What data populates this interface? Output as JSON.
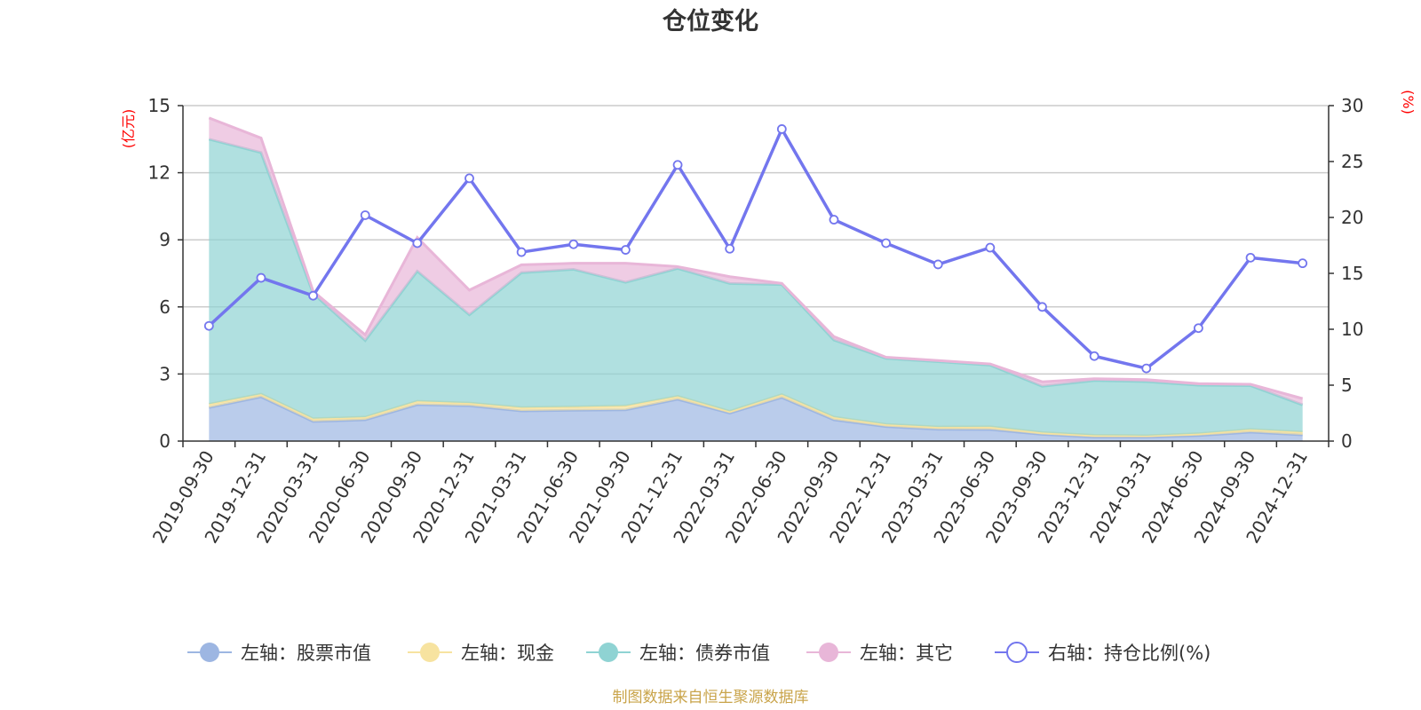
{
  "chart_data": {
    "type": "area+line",
    "title": "仓位变化",
    "left_axis_unit": "(亿元)",
    "right_axis_unit": "(%)",
    "left_ylim": [
      0,
      15
    ],
    "left_ticks": [
      "0",
      "3",
      "6",
      "9",
      "12",
      "15"
    ],
    "right_ylim": [
      0,
      30
    ],
    "right_ticks": [
      "0",
      "5",
      "10",
      "15",
      "20",
      "25",
      "30"
    ],
    "categories": [
      "2019-09-30",
      "2019-12-31",
      "2020-03-31",
      "2020-06-30",
      "2020-09-30",
      "2020-12-31",
      "2021-03-31",
      "2021-06-30",
      "2021-09-30",
      "2021-12-31",
      "2022-03-31",
      "2022-06-30",
      "2022-09-30",
      "2022-12-31",
      "2023-03-31",
      "2023-06-30",
      "2023-09-30",
      "2023-12-31",
      "2024-03-31",
      "2024-06-30",
      "2024-09-30",
      "2024-12-31"
    ],
    "series": [
      {
        "name": "左轴：股票市值",
        "axis": "left",
        "kind": "stacked-area",
        "color": "#9db6e2",
        "values": [
          1.5,
          1.98,
          0.88,
          0.95,
          1.63,
          1.58,
          1.35,
          1.38,
          1.4,
          1.87,
          1.25,
          1.95,
          0.95,
          0.65,
          0.53,
          0.52,
          0.3,
          0.18,
          0.18,
          0.25,
          0.4,
          0.28
        ]
      },
      {
        "name": "左轴：现金",
        "axis": "left",
        "kind": "stacked-area",
        "color": "#f7e3a0",
        "values": [
          0.15,
          0.12,
          0.12,
          0.12,
          0.15,
          0.12,
          0.15,
          0.15,
          0.17,
          0.13,
          0.08,
          0.13,
          0.12,
          0.1,
          0.1,
          0.12,
          0.08,
          0.08,
          0.06,
          0.08,
          0.12,
          0.12
        ]
      },
      {
        "name": "左轴：债券市值",
        "axis": "left",
        "kind": "stacked-area",
        "color": "#8fd3d3",
        "values": [
          11.85,
          10.8,
          5.6,
          3.43,
          5.82,
          3.95,
          6.03,
          6.15,
          5.53,
          5.72,
          5.72,
          4.92,
          3.45,
          2.95,
          2.92,
          2.76,
          2.07,
          2.45,
          2.42,
          2.17,
          1.96,
          1.22
        ]
      },
      {
        "name": "左轴：其它",
        "axis": "left",
        "kind": "stacked-area",
        "color": "#e8b6d8",
        "values": [
          0.95,
          0.65,
          0.1,
          0.25,
          1.5,
          1.1,
          0.35,
          0.27,
          0.85,
          0.08,
          0.3,
          0.05,
          0.15,
          0.05,
          0.05,
          0.05,
          0.2,
          0.08,
          0.09,
          0.07,
          0.06,
          0.28
        ]
      },
      {
        "name": "右轴：持仓比例(%)",
        "axis": "right",
        "kind": "line",
        "color": "#7376ee",
        "values": [
          10.3,
          14.6,
          13.0,
          20.2,
          17.7,
          23.5,
          16.9,
          17.6,
          17.1,
          24.7,
          17.2,
          27.9,
          19.8,
          17.7,
          15.8,
          17.3,
          12.0,
          7.6,
          6.5,
          10.1,
          16.4,
          15.9
        ]
      }
    ],
    "legend_position": "bottom-center"
  },
  "footer": {
    "source": "制图数据来自恒生聚源数据库"
  },
  "colors": {
    "grid": "#cccccc",
    "axis": "#333333",
    "unit": "#ff0000"
  }
}
